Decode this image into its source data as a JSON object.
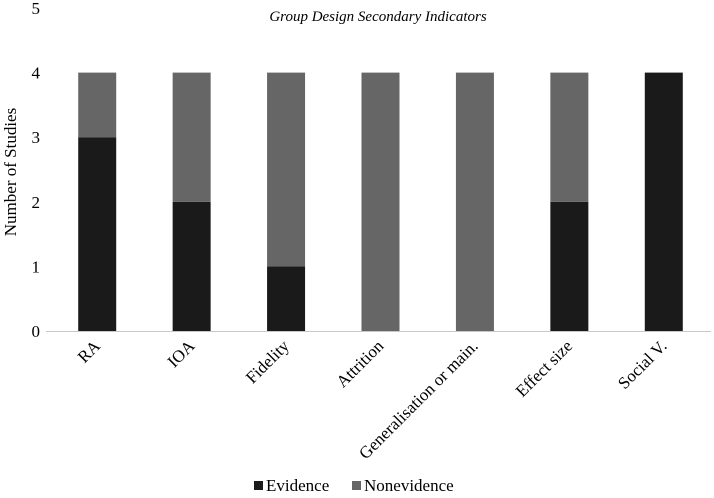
{
  "chart_data": {
    "type": "bar",
    "stacked": true,
    "title": "Group Design Secondary Indicators",
    "xlabel": "",
    "ylabel": "Number of Studies",
    "ylim": [
      0,
      5
    ],
    "yticks": [
      0,
      1,
      2,
      3,
      4,
      5
    ],
    "grid": false,
    "legend_position": "bottom",
    "categories": [
      "RA",
      "IOA",
      "Fidelity",
      "Attrition",
      "Generalisation or main.",
      "Effect size",
      "Social V."
    ],
    "series": [
      {
        "name": "Evidence",
        "color": "#1a1a1a",
        "values": [
          3,
          2,
          1,
          0,
          0,
          2,
          4
        ]
      },
      {
        "name": "Nonevidence",
        "color": "#666666",
        "values": [
          1,
          2,
          3,
          4,
          4,
          2,
          0
        ]
      }
    ]
  }
}
